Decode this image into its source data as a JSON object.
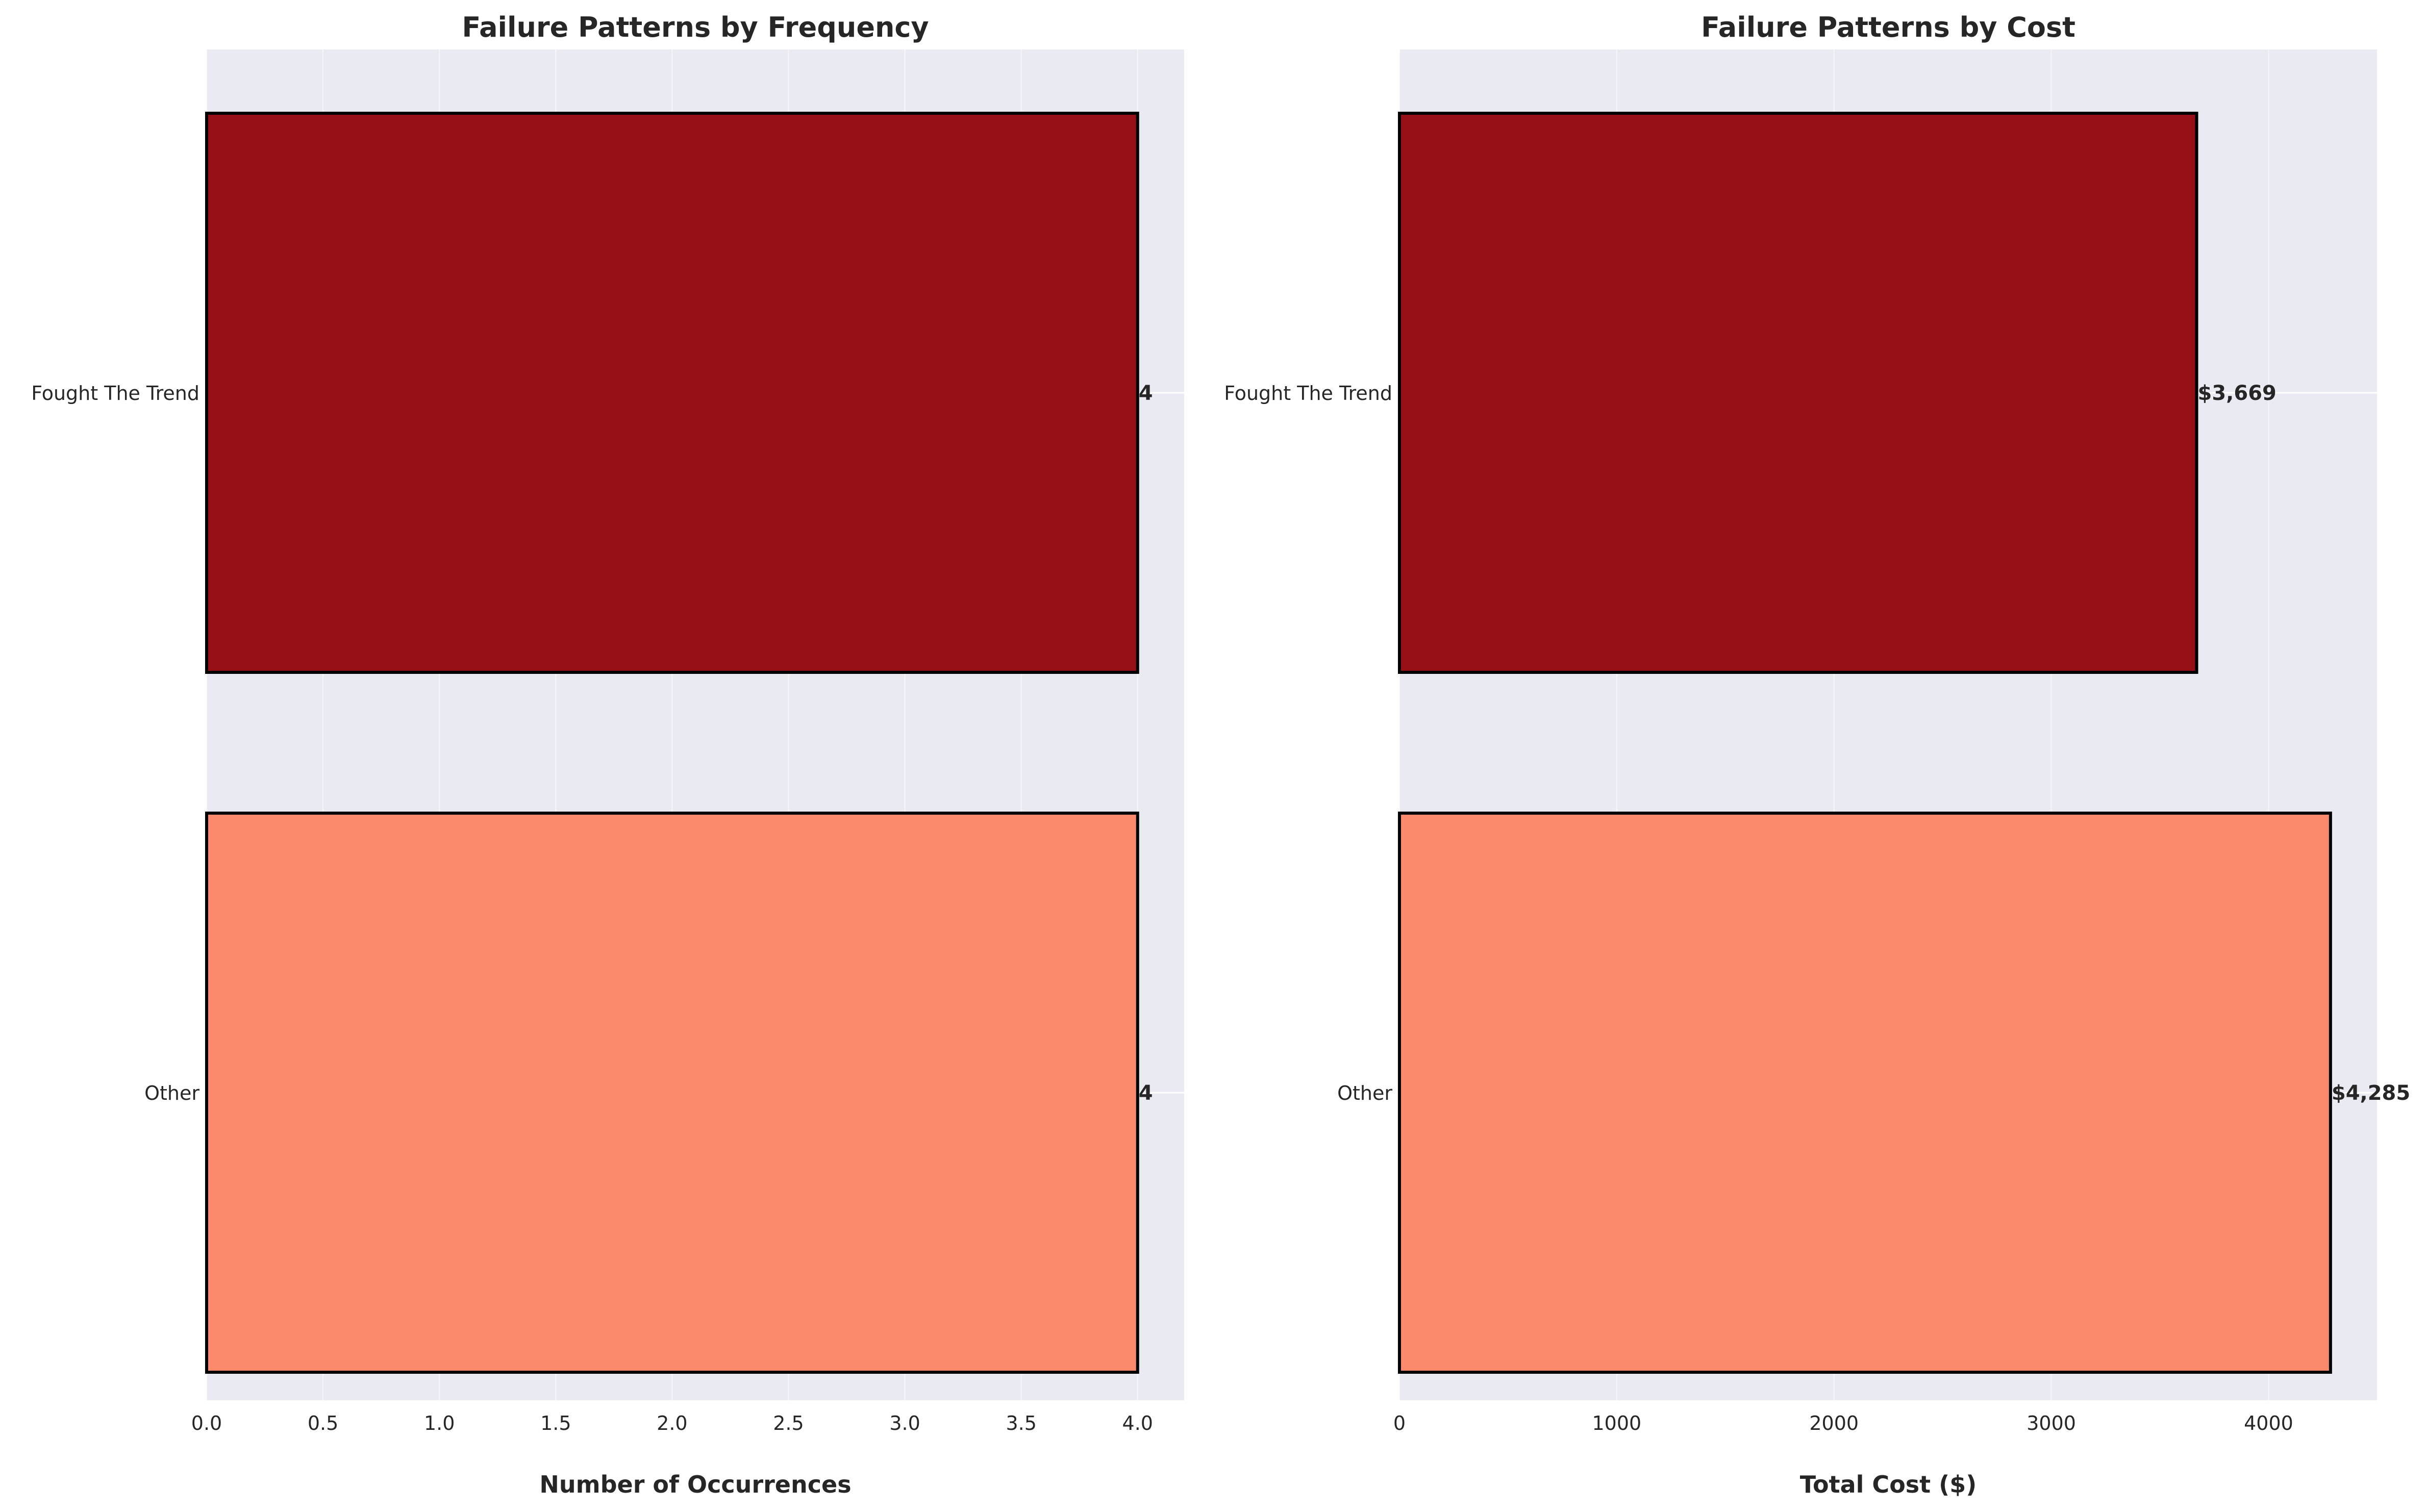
{
  "chart_data": [
    {
      "type": "bar",
      "orientation": "horizontal",
      "title": "Failure Patterns by Frequency",
      "xlabel": "Number of Occurrences",
      "ylabel": "",
      "categories": [
        "Fought The Trend",
        "Other"
      ],
      "values": [
        4,
        4
      ],
      "data_labels": [
        "4",
        "4"
      ],
      "bar_colors": [
        "#960e16",
        "#fb8a6c"
      ],
      "xlim": [
        0,
        4.2
      ],
      "xticks": [
        0.0,
        0.5,
        1.0,
        1.5,
        2.0,
        2.5,
        3.0,
        3.5,
        4.0
      ],
      "xtick_labels": [
        "0.0",
        "0.5",
        "1.0",
        "1.5",
        "2.0",
        "2.5",
        "3.0",
        "3.5",
        "4.0"
      ],
      "grid": true,
      "background": "#eaeaf2"
    },
    {
      "type": "bar",
      "orientation": "horizontal",
      "title": "Failure Patterns by Cost",
      "xlabel": "Total Cost ($)",
      "ylabel": "",
      "categories": [
        "Fought The Trend",
        "Other"
      ],
      "values": [
        3669,
        4285
      ],
      "data_labels": [
        "$3,669",
        "$4,285"
      ],
      "bar_colors": [
        "#960e16",
        "#fb8a6c"
      ],
      "xlim": [
        0,
        4499
      ],
      "xticks": [
        0,
        1000,
        2000,
        3000,
        4000
      ],
      "xtick_labels": [
        "0",
        "1000",
        "2000",
        "3000",
        "4000"
      ],
      "grid": true,
      "background": "#eaeaf2"
    }
  ]
}
